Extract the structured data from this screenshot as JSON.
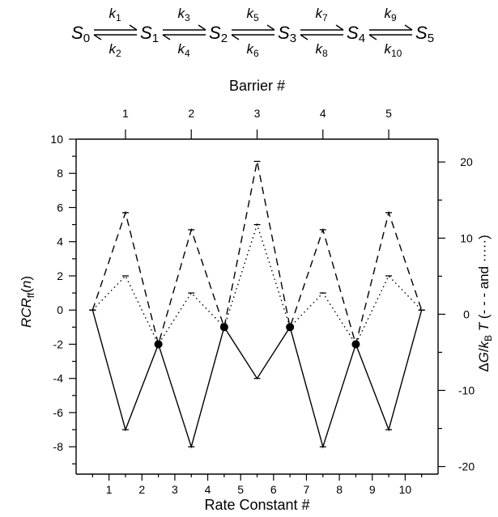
{
  "scheme": {
    "states": [
      "S0",
      "S1",
      "S2",
      "S3",
      "S4",
      "S5"
    ],
    "forward_rates": [
      "k1",
      "k3",
      "k5",
      "k7",
      "k9"
    ],
    "backward_rates": [
      "k2",
      "k4",
      "k6",
      "k8",
      "k10"
    ]
  },
  "chart_data": {
    "type": "line",
    "xlabel": "Rate Constant #",
    "top_xlabel": "Barrier #",
    "ylabel_left": "RCRff(n)",
    "ylabel_right": "ΔG/kBT (- - - and ·····)",
    "xlim": [
      0,
      11
    ],
    "ylim_left": [
      -9.6,
      10
    ],
    "ylim_right": [
      -21,
      23
    ],
    "x_ticks": [
      1,
      2,
      3,
      4,
      5,
      6,
      7,
      8,
      9,
      10
    ],
    "top_ticks": [
      1,
      2,
      3,
      4,
      5
    ],
    "left_ticks": [
      -8,
      -6,
      -4,
      -2,
      0,
      2,
      4,
      6,
      8,
      10
    ],
    "right_ticks": [
      -20,
      -10,
      0,
      10,
      20
    ],
    "grid": false,
    "series": [
      {
        "axis": "left",
        "style": "solid",
        "x": [
          0.5,
          1.5,
          2.5,
          3.5,
          4.5,
          5.5,
          6.5,
          7.5,
          8.5,
          9.5,
          10.5
        ],
        "values": [
          0,
          -7,
          -2,
          -8,
          -1,
          -4,
          -1,
          -8,
          -2,
          -7,
          0
        ]
      },
      {
        "axis": "left",
        "style": "dashed",
        "x": [
          0.5,
          1.5,
          2.5,
          3.5,
          4.5,
          5.5,
          6.5,
          7.5,
          8.5,
          9.5,
          10.5
        ],
        "values": [
          0,
          5.7,
          -2,
          4.7,
          -1,
          8.7,
          -1,
          4.7,
          -2,
          5.7,
          0
        ]
      },
      {
        "axis": "left",
        "style": "dotted",
        "x": [
          0.5,
          1.5,
          2.5,
          3.5,
          4.5,
          5.5,
          6.5,
          7.5,
          8.5,
          9.5,
          10.5
        ],
        "values": [
          0,
          2,
          -2,
          1,
          -1,
          5,
          -1,
          1,
          -2,
          2,
          0
        ]
      }
    ],
    "markers": {
      "x": [
        2.5,
        4.5,
        6.5,
        8.5
      ],
      "values": [
        -2,
        -1,
        -1,
        -2
      ]
    }
  }
}
